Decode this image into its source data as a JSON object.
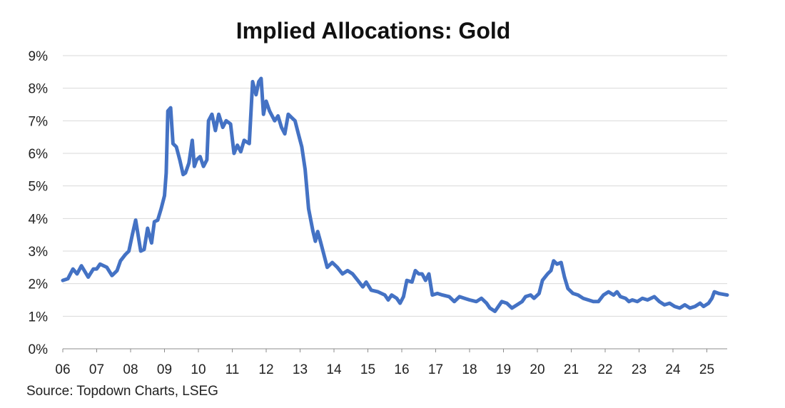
{
  "chart_data": {
    "type": "line",
    "title": "Implied Allocations: Gold",
    "source": "Source: Topdown Charts, LSEG",
    "xlabel": "",
    "ylabel": "",
    "x_tick_labels": [
      "06",
      "07",
      "08",
      "09",
      "10",
      "11",
      "12",
      "13",
      "14",
      "15",
      "16",
      "17",
      "18",
      "19",
      "20",
      "21",
      "22",
      "23",
      "24",
      "25"
    ],
    "y_tick_labels": [
      "0%",
      "1%",
      "2%",
      "3%",
      "4%",
      "5%",
      "6%",
      "7%",
      "8%",
      "9%"
    ],
    "xlim": [
      2006.0,
      2025.6
    ],
    "ylim": [
      0,
      9
    ],
    "grid": "horizontal",
    "legend": "none",
    "series": [
      {
        "color": "#4472c4",
        "points": [
          [
            2006.0,
            2.1
          ],
          [
            2006.15,
            2.15
          ],
          [
            2006.3,
            2.45
          ],
          [
            2006.42,
            2.3
          ],
          [
            2006.55,
            2.55
          ],
          [
            2006.75,
            2.2
          ],
          [
            2006.9,
            2.45
          ],
          [
            2007.0,
            2.45
          ],
          [
            2007.1,
            2.6
          ],
          [
            2007.3,
            2.5
          ],
          [
            2007.45,
            2.25
          ],
          [
            2007.6,
            2.4
          ],
          [
            2007.7,
            2.7
          ],
          [
            2007.85,
            2.9
          ],
          [
            2007.95,
            3.0
          ],
          [
            2008.05,
            3.5
          ],
          [
            2008.15,
            3.95
          ],
          [
            2008.3,
            3.0
          ],
          [
            2008.4,
            3.05
          ],
          [
            2008.5,
            3.7
          ],
          [
            2008.62,
            3.25
          ],
          [
            2008.7,
            3.9
          ],
          [
            2008.8,
            3.95
          ],
          [
            2008.9,
            4.3
          ],
          [
            2009.0,
            4.7
          ],
          [
            2009.05,
            5.4
          ],
          [
            2009.1,
            7.3
          ],
          [
            2009.18,
            7.4
          ],
          [
            2009.25,
            6.3
          ],
          [
            2009.35,
            6.2
          ],
          [
            2009.45,
            5.8
          ],
          [
            2009.55,
            5.35
          ],
          [
            2009.62,
            5.4
          ],
          [
            2009.72,
            5.7
          ],
          [
            2009.82,
            6.4
          ],
          [
            2009.88,
            5.6
          ],
          [
            2009.95,
            5.8
          ],
          [
            2010.05,
            5.9
          ],
          [
            2010.15,
            5.6
          ],
          [
            2010.25,
            5.8
          ],
          [
            2010.3,
            7.0
          ],
          [
            2010.4,
            7.2
          ],
          [
            2010.5,
            6.7
          ],
          [
            2010.6,
            7.2
          ],
          [
            2010.72,
            6.8
          ],
          [
            2010.82,
            7.0
          ],
          [
            2010.95,
            6.9
          ],
          [
            2011.05,
            6.0
          ],
          [
            2011.15,
            6.25
          ],
          [
            2011.25,
            6.05
          ],
          [
            2011.35,
            6.4
          ],
          [
            2011.5,
            6.3
          ],
          [
            2011.6,
            8.2
          ],
          [
            2011.7,
            7.8
          ],
          [
            2011.78,
            8.2
          ],
          [
            2011.85,
            8.3
          ],
          [
            2011.92,
            7.2
          ],
          [
            2012.0,
            7.6
          ],
          [
            2012.1,
            7.3
          ],
          [
            2012.25,
            7.0
          ],
          [
            2012.35,
            7.15
          ],
          [
            2012.45,
            6.8
          ],
          [
            2012.55,
            6.6
          ],
          [
            2012.65,
            7.2
          ],
          [
            2012.75,
            7.1
          ],
          [
            2012.85,
            7.0
          ],
          [
            2012.95,
            6.6
          ],
          [
            2013.05,
            6.2
          ],
          [
            2013.15,
            5.5
          ],
          [
            2013.25,
            4.3
          ],
          [
            2013.38,
            3.6
          ],
          [
            2013.45,
            3.3
          ],
          [
            2013.52,
            3.6
          ],
          [
            2013.6,
            3.3
          ],
          [
            2013.7,
            2.9
          ],
          [
            2013.8,
            2.5
          ],
          [
            2013.95,
            2.65
          ],
          [
            2014.1,
            2.5
          ],
          [
            2014.25,
            2.3
          ],
          [
            2014.4,
            2.4
          ],
          [
            2014.55,
            2.3
          ],
          [
            2014.7,
            2.1
          ],
          [
            2014.85,
            1.9
          ],
          [
            2014.95,
            2.05
          ],
          [
            2015.1,
            1.8
          ],
          [
            2015.3,
            1.75
          ],
          [
            2015.5,
            1.65
          ],
          [
            2015.6,
            1.5
          ],
          [
            2015.7,
            1.65
          ],
          [
            2015.85,
            1.55
          ],
          [
            2015.95,
            1.4
          ],
          [
            2016.05,
            1.6
          ],
          [
            2016.15,
            2.1
          ],
          [
            2016.3,
            2.05
          ],
          [
            2016.4,
            2.4
          ],
          [
            2016.5,
            2.3
          ],
          [
            2016.6,
            2.3
          ],
          [
            2016.7,
            2.1
          ],
          [
            2016.8,
            2.3
          ],
          [
            2016.9,
            1.65
          ],
          [
            2017.05,
            1.7
          ],
          [
            2017.2,
            1.65
          ],
          [
            2017.4,
            1.6
          ],
          [
            2017.55,
            1.45
          ],
          [
            2017.7,
            1.6
          ],
          [
            2017.85,
            1.55
          ],
          [
            2018.0,
            1.5
          ],
          [
            2018.2,
            1.45
          ],
          [
            2018.35,
            1.55
          ],
          [
            2018.5,
            1.4
          ],
          [
            2018.6,
            1.25
          ],
          [
            2018.75,
            1.15
          ],
          [
            2018.85,
            1.3
          ],
          [
            2018.95,
            1.45
          ],
          [
            2019.1,
            1.4
          ],
          [
            2019.25,
            1.25
          ],
          [
            2019.4,
            1.35
          ],
          [
            2019.55,
            1.45
          ],
          [
            2019.65,
            1.6
          ],
          [
            2019.8,
            1.65
          ],
          [
            2019.9,
            1.55
          ],
          [
            2020.05,
            1.7
          ],
          [
            2020.15,
            2.1
          ],
          [
            2020.3,
            2.3
          ],
          [
            2020.4,
            2.4
          ],
          [
            2020.48,
            2.7
          ],
          [
            2020.58,
            2.6
          ],
          [
            2020.7,
            2.65
          ],
          [
            2020.8,
            2.2
          ],
          [
            2020.9,
            1.85
          ],
          [
            2021.05,
            1.7
          ],
          [
            2021.2,
            1.65
          ],
          [
            2021.35,
            1.55
          ],
          [
            2021.5,
            1.5
          ],
          [
            2021.65,
            1.45
          ],
          [
            2021.8,
            1.45
          ],
          [
            2021.95,
            1.65
          ],
          [
            2022.1,
            1.75
          ],
          [
            2022.25,
            1.65
          ],
          [
            2022.35,
            1.75
          ],
          [
            2022.45,
            1.6
          ],
          [
            2022.6,
            1.55
          ],
          [
            2022.7,
            1.45
          ],
          [
            2022.8,
            1.5
          ],
          [
            2022.95,
            1.45
          ],
          [
            2023.1,
            1.55
          ],
          [
            2023.25,
            1.5
          ],
          [
            2023.45,
            1.6
          ],
          [
            2023.6,
            1.45
          ],
          [
            2023.75,
            1.35
          ],
          [
            2023.9,
            1.4
          ],
          [
            2024.05,
            1.3
          ],
          [
            2024.2,
            1.25
          ],
          [
            2024.35,
            1.35
          ],
          [
            2024.5,
            1.25
          ],
          [
            2024.65,
            1.3
          ],
          [
            2024.8,
            1.4
          ],
          [
            2024.9,
            1.3
          ],
          [
            2025.05,
            1.4
          ],
          [
            2025.15,
            1.55
          ],
          [
            2025.22,
            1.75
          ],
          [
            2025.35,
            1.7
          ],
          [
            2025.6,
            1.65
          ]
        ]
      }
    ]
  }
}
